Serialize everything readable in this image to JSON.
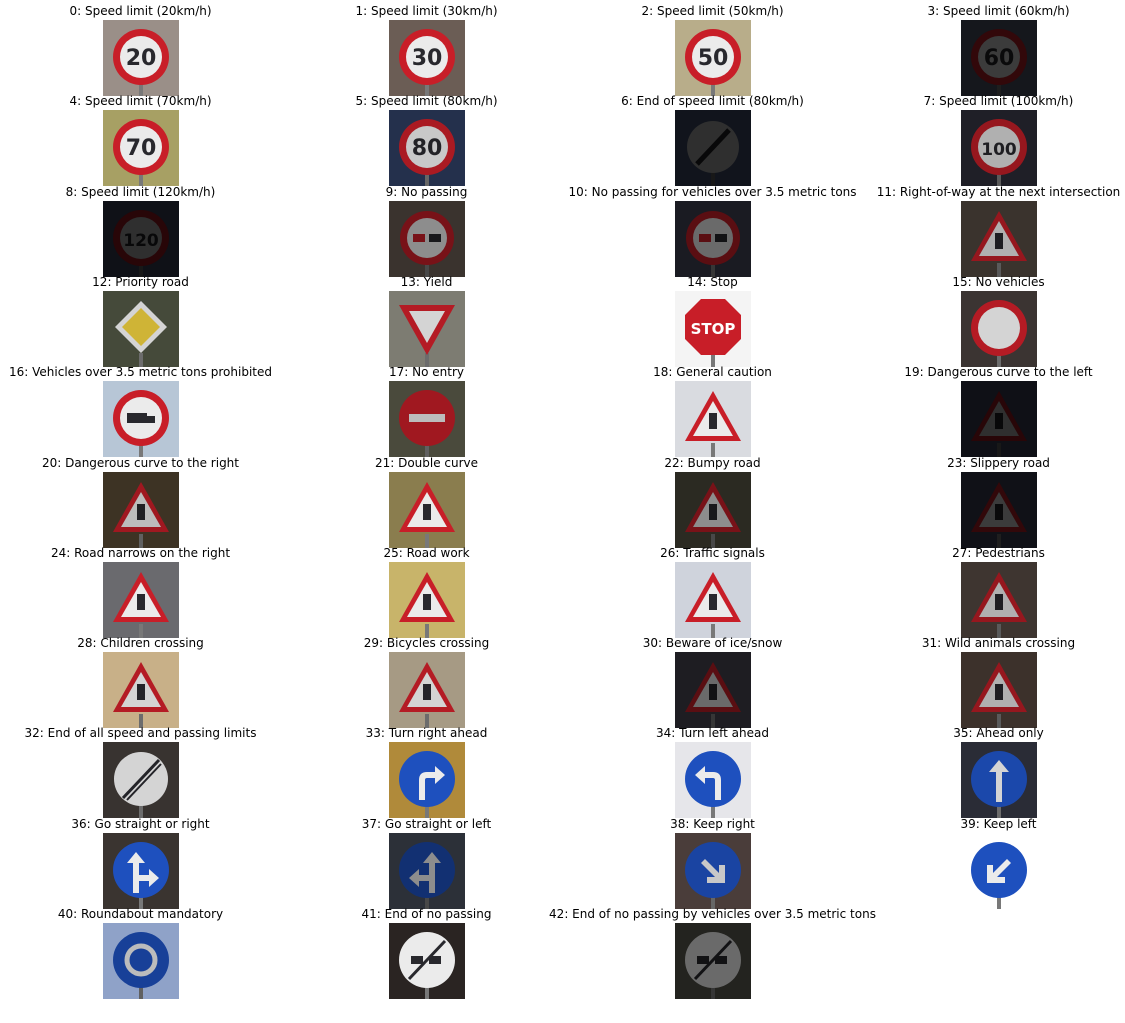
{
  "figure": {
    "signs": [
      {
        "title": "0: Speed limit (20km/h)",
        "sign": "speed",
        "text": "20",
        "bg": "#9a8f88",
        "bright": 1.0
      },
      {
        "title": "1: Speed limit (30km/h)",
        "sign": "speed",
        "text": "30",
        "bg": "#6b5d55",
        "bright": 1.0
      },
      {
        "title": "2: Speed limit (50km/h)",
        "sign": "speed",
        "text": "50",
        "bg": "#b8ad8a",
        "bright": 1.0
      },
      {
        "title": "3: Speed limit (60km/h)",
        "sign": "speed",
        "text": "60",
        "bg": "#15171c",
        "bright": 0.25
      },
      {
        "title": "4: Speed limit (70km/h)",
        "sign": "speed",
        "text": "70",
        "bg": "#a7a064",
        "bright": 1.0
      },
      {
        "title": "5: Speed limit (80km/h)",
        "sign": "speed",
        "text": "80",
        "bg": "#24304c",
        "bright": 0.85
      },
      {
        "title": "6: End of speed limit (80km/h)",
        "sign": "end",
        "text": "80",
        "bg": "#11141c",
        "bright": 0.2
      },
      {
        "title": "7: Speed limit (100km/h)",
        "sign": "speed",
        "text": "100",
        "bg": "#1f1f27",
        "bright": 0.75
      },
      {
        "title": "8: Speed limit (120km/h)",
        "sign": "speed",
        "text": "120",
        "bg": "#0f1117",
        "bright": 0.2
      },
      {
        "title": "9: No passing",
        "sign": "nopass",
        "text": "",
        "bg": "#3a332e",
        "bright": 0.6
      },
      {
        "title": "10: No passing for vehicles over 3.5 metric tons",
        "sign": "nopass",
        "text": "",
        "bg": "#1a1b22",
        "bright": 0.45
      },
      {
        "title": "11: Right-of-way at the next intersection",
        "sign": "triangle",
        "text": "",
        "bg": "#3a332d",
        "bright": 0.75
      },
      {
        "title": "12: Priority road",
        "sign": "priority",
        "text": "",
        "bg": "#454a3a",
        "bright": 0.9
      },
      {
        "title": "13: Yield",
        "sign": "yield",
        "text": "",
        "bg": "#7d7c72",
        "bright": 0.9
      },
      {
        "title": "14: Stop",
        "sign": "stop",
        "text": "STOP",
        "bg": "#f4f4f4",
        "bright": 1.0
      },
      {
        "title": "15: No vehicles",
        "sign": "novehicles",
        "text": "",
        "bg": "#3b3432",
        "bright": 0.9
      },
      {
        "title": "16: Vehicles over 3.5 metric tons prohibited",
        "sign": "truck",
        "text": "",
        "bg": "#b7c6d6",
        "bright": 1.0
      },
      {
        "title": "17: No entry",
        "sign": "noentry",
        "text": "",
        "bg": "#4a4a3c",
        "bright": 0.8
      },
      {
        "title": "18: General caution",
        "sign": "triangle",
        "text": "",
        "bg": "#d9dbe0",
        "bright": 1.0
      },
      {
        "title": "19: Dangerous curve to the left",
        "sign": "triangle",
        "text": "",
        "bg": "#0f1016",
        "bright": 0.2
      },
      {
        "title": "20: Dangerous curve to the right",
        "sign": "triangle",
        "text": "",
        "bg": "#3d3324",
        "bright": 0.8
      },
      {
        "title": "21: Double curve",
        "sign": "triangle",
        "text": "",
        "bg": "#8a7d4e",
        "bright": 1.0
      },
      {
        "title": "22: Bumpy road",
        "sign": "triangle",
        "text": "",
        "bg": "#2b2a22",
        "bright": 0.6
      },
      {
        "title": "23: Slippery road",
        "sign": "triangle",
        "text": "",
        "bg": "#101117",
        "bright": 0.25
      },
      {
        "title": "24: Road narrows on the right",
        "sign": "triangle",
        "text": "",
        "bg": "#6a6a6e",
        "bright": 1.0
      },
      {
        "title": "25: Road work",
        "sign": "triangle",
        "text": "",
        "bg": "#c8b46a",
        "bright": 1.0
      },
      {
        "title": "26: Traffic signals",
        "sign": "triangle",
        "text": "",
        "bg": "#cfd3dc",
        "bright": 1.0
      },
      {
        "title": "27: Pedestrians",
        "sign": "triangle",
        "text": "",
        "bg": "#3e3530",
        "bright": 0.75
      },
      {
        "title": "28: Children crossing",
        "sign": "triangle",
        "text": "",
        "bg": "#c8b088",
        "bright": 0.9
      },
      {
        "title": "29: Bicycles crossing",
        "sign": "triangle",
        "text": "",
        "bg": "#a69a84",
        "bright": 0.9
      },
      {
        "title": "30: Beware of ice/snow",
        "sign": "triangle",
        "text": "",
        "bg": "#1e1d22",
        "bright": 0.45
      },
      {
        "title": "31: Wild animals crossing",
        "sign": "triangle",
        "text": "",
        "bg": "#3c312b",
        "bright": 0.75
      },
      {
        "title": "32: End of all speed and passing limits",
        "sign": "endall",
        "text": "",
        "bg": "#383330",
        "bright": 0.9
      },
      {
        "title": "33: Turn right ahead",
        "sign": "blue",
        "text": "turnright",
        "bg": "#b08a3a",
        "bright": 1.0
      },
      {
        "title": "34: Turn left ahead",
        "sign": "blue",
        "text": "turnleft",
        "bg": "#e6e6ea",
        "bright": 1.0
      },
      {
        "title": "35: Ahead only",
        "sign": "blue",
        "text": "ahead",
        "bg": "#2a2c36",
        "bright": 0.9
      },
      {
        "title": "36: Go straight or right",
        "sign": "blue",
        "text": "straightright",
        "bg": "#3a3430",
        "bright": 1.0
      },
      {
        "title": "37: Go straight or left",
        "sign": "blue",
        "text": "straightleft",
        "bg": "#2c3038",
        "bright": 0.6
      },
      {
        "title": "38: Keep right",
        "sign": "blue",
        "text": "keepright",
        "bg": "#4a3d3a",
        "bright": 0.85
      },
      {
        "title": "39: Keep left",
        "sign": "blue",
        "text": "keepleft",
        "bg": "#ffffff",
        "bright": 1.0
      },
      {
        "title": "40: Roundabout mandatory",
        "sign": "blue",
        "text": "roundabout",
        "bg": "#8fa2c8",
        "bright": 0.8
      },
      {
        "title": "41: End of no passing",
        "sign": "endnopass",
        "text": "",
        "bg": "#2a2422",
        "bright": 1.0
      },
      {
        "title": "42: End of no passing by vehicles over 3.5 metric tons",
        "sign": "endnopass",
        "text": "",
        "bg": "#23231f",
        "bright": 0.45
      }
    ]
  }
}
